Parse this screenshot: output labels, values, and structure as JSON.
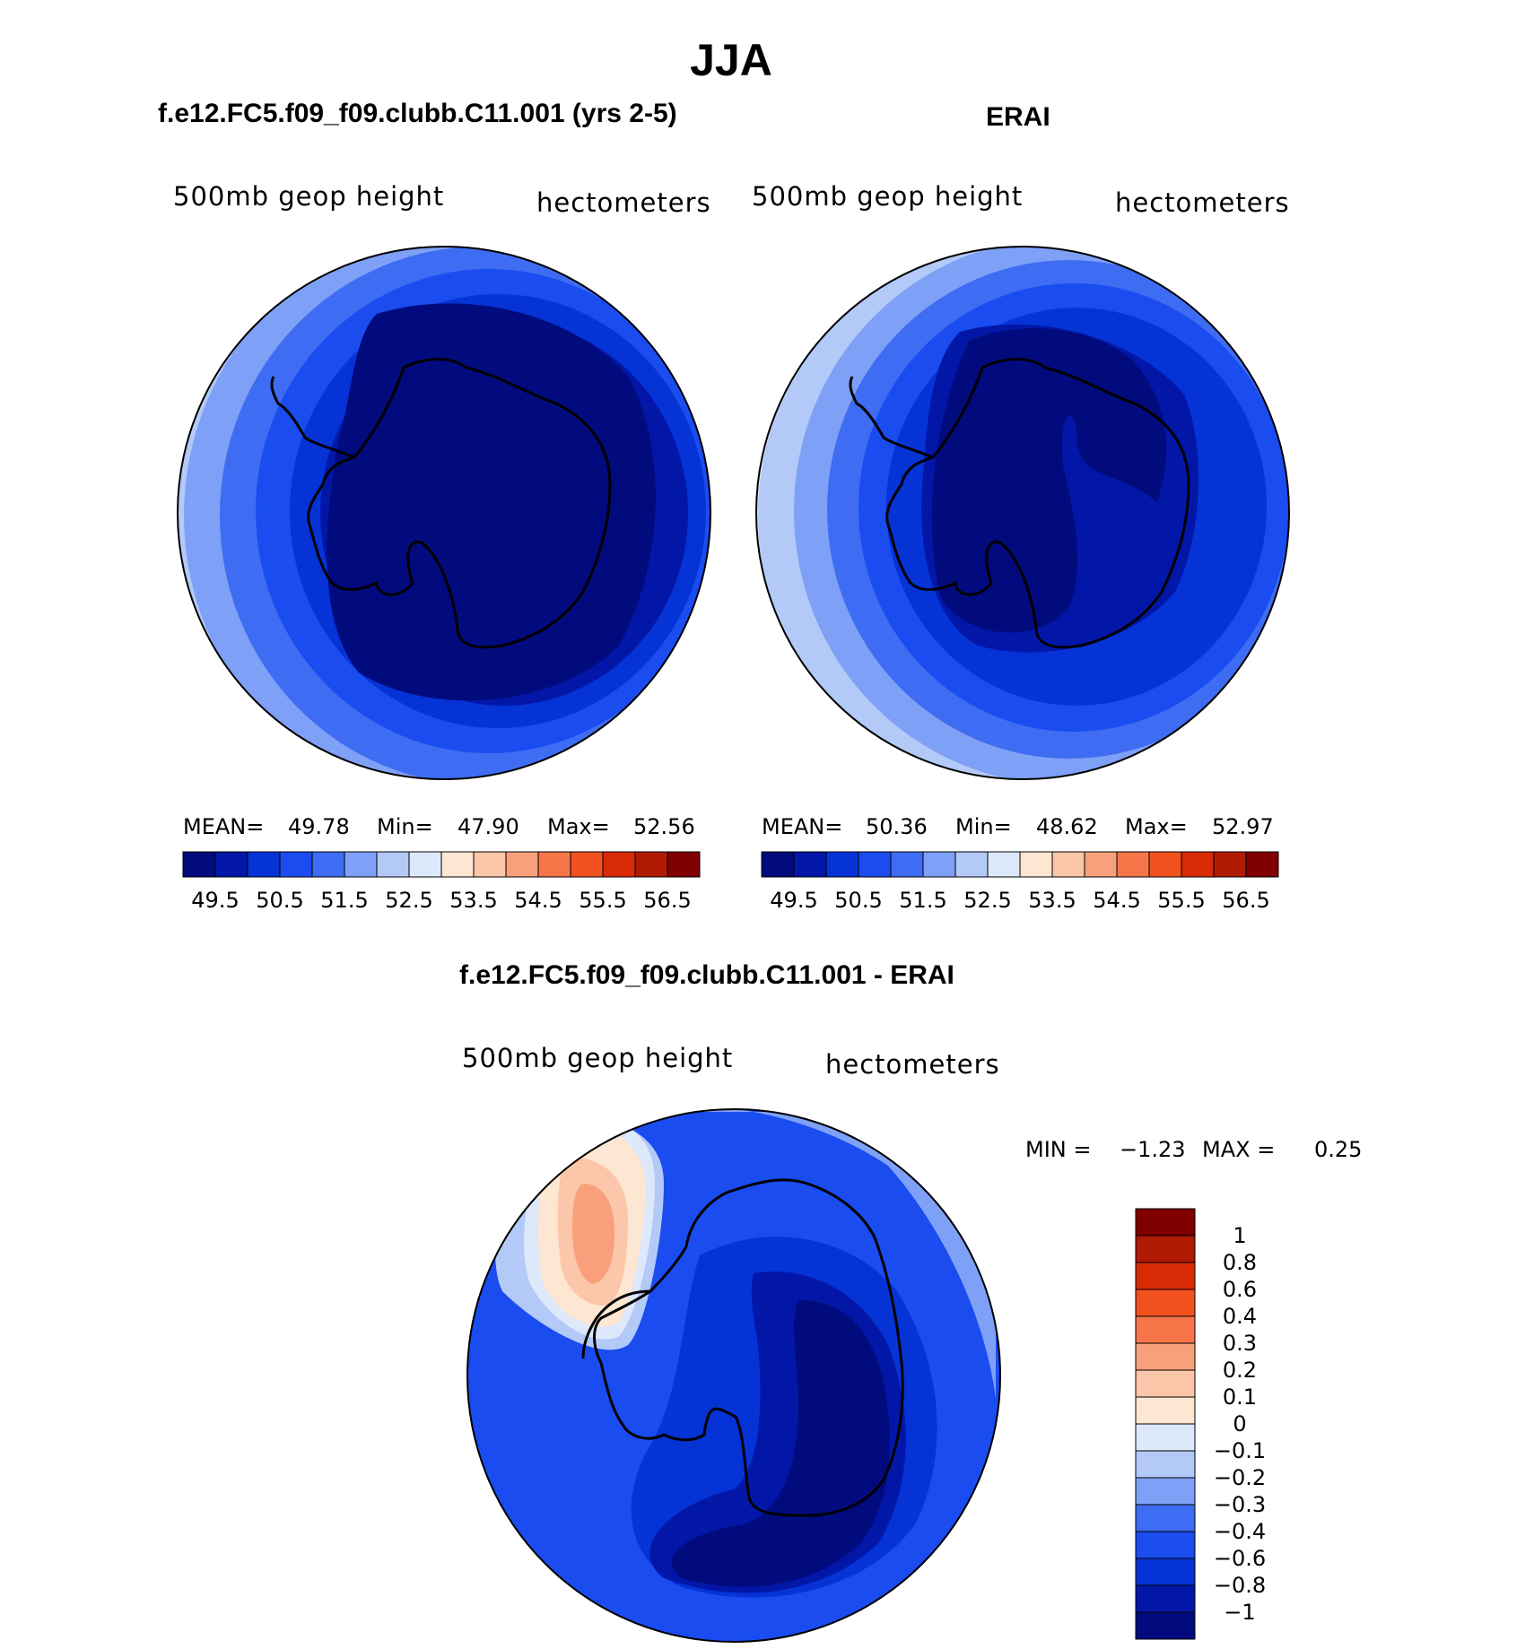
{
  "figure": {
    "season": "JJA",
    "left_title": "f.e12.FC5.f09_f09.clubb.C11.001 (yrs 2-5)",
    "right_title": "ERAI",
    "diff_title": "f.e12.FC5.f09_f09.clubb.C11.001 - ERAI"
  },
  "panels": {
    "left": {
      "variable": "500mb geop height",
      "units": "hectometers",
      "mean_label": "MEAN=",
      "mean": "49.78",
      "min_label": "Min=",
      "min": "47.90",
      "max_label": "Max=",
      "max": "52.56"
    },
    "right": {
      "variable": "500mb geop height",
      "units": "hectometers",
      "mean_label": "MEAN=",
      "mean": "50.36",
      "min_label": "Min=",
      "min": "48.62",
      "max_label": "Max=",
      "max": "52.97"
    },
    "diff": {
      "variable": "500mb geop height",
      "units": "hectometers",
      "min_label": "MIN =",
      "min": "−1.23",
      "max_label": "MAX =",
      "max": "0.25"
    }
  },
  "colorbars": {
    "main": {
      "colors": [
        "#020b7d",
        "#0217a8",
        "#0533d6",
        "#1a4cf0",
        "#3e6cf2",
        "#7ea0f6",
        "#b3c9f8",
        "#dde9fb",
        "#fde6d2",
        "#fbc6a9",
        "#f8a07c",
        "#f6764a",
        "#f2521f",
        "#d92a06",
        "#b01a03",
        "#800000"
      ],
      "tick_labels": [
        "49.5",
        "50.5",
        "51.5",
        "52.5",
        "53.5",
        "54.5",
        "55.5",
        "56.5"
      ]
    },
    "diff": {
      "colors": [
        "#020b7d",
        "#0217a8",
        "#0533d6",
        "#1a4cf0",
        "#3e6cf2",
        "#7ea0f6",
        "#b3c9f8",
        "#dde9fb",
        "#fde6d2",
        "#fbc6a9",
        "#f8a07c",
        "#f6764a",
        "#f2521f",
        "#d92a06",
        "#b01a03",
        "#800000"
      ],
      "tick_labels": [
        "1",
        "0.8",
        "0.6",
        "0.4",
        "0.3",
        "0.2",
        "0.1",
        "0",
        "−0.1",
        "−0.2",
        "−0.3",
        "−0.4",
        "−0.6",
        "−0.8",
        "−1"
      ]
    }
  },
  "chart_data": [
    {
      "type": "heatmap",
      "title": "f.e12.FC5.f09_f09.clubb.C11.001 (yrs 2-5)",
      "projection": "south polar stereographic",
      "variable": "500mb geop height",
      "units": "hectometers",
      "contour_levels": [
        49.5,
        50,
        50.5,
        51,
        51.5,
        52,
        52.5,
        53,
        53.5,
        54,
        54.5,
        55,
        55.5,
        56,
        56.5
      ],
      "mean": 49.78,
      "min": 47.9,
      "max": 52.56
    },
    {
      "type": "heatmap",
      "title": "ERAI",
      "projection": "south polar stereographic",
      "variable": "500mb geop height",
      "units": "hectometers",
      "contour_levels": [
        49.5,
        50,
        50.5,
        51,
        51.5,
        52,
        52.5,
        53,
        53.5,
        54,
        54.5,
        55,
        55.5,
        56,
        56.5
      ],
      "mean": 50.36,
      "min": 48.62,
      "max": 52.97
    },
    {
      "type": "heatmap",
      "title": "f.e12.FC5.f09_f09.clubb.C11.001 - ERAI",
      "projection": "south polar stereographic",
      "variable": "500mb geop height",
      "units": "hectometers",
      "contour_levels": [
        -1,
        -0.8,
        -0.6,
        -0.4,
        -0.3,
        -0.2,
        -0.1,
        0,
        0.1,
        0.2,
        0.3,
        0.4,
        0.6,
        0.8,
        1
      ],
      "min": -1.23,
      "max": 0.25
    }
  ]
}
